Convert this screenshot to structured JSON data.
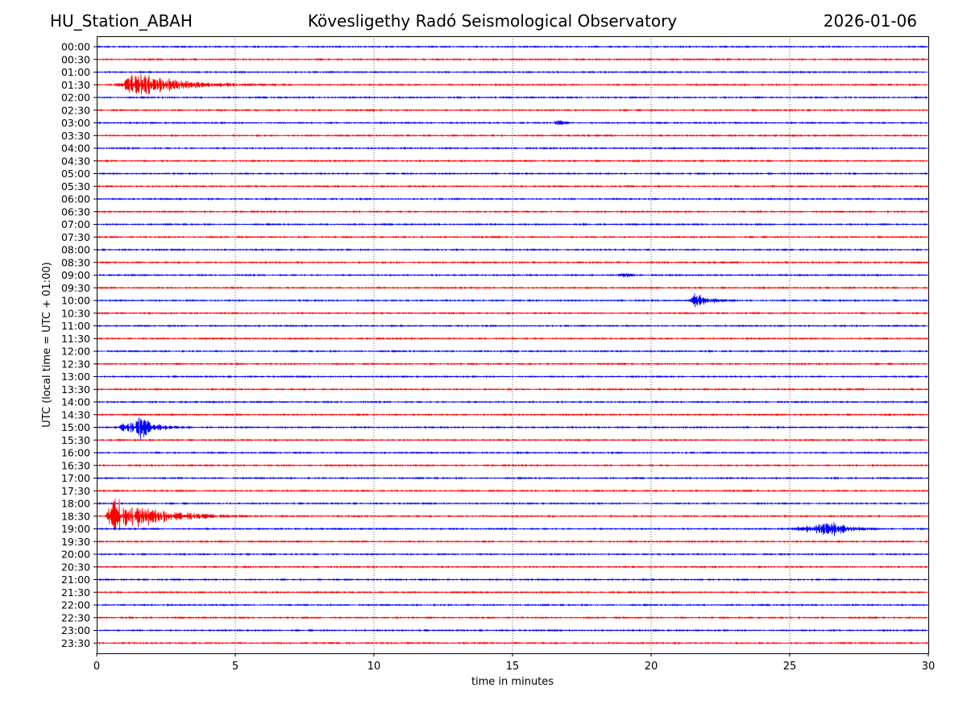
{
  "header": {
    "station": "HU_Station_ABAH",
    "observatory": "Kövesligethy Radó Seismological Observatory",
    "date": "2026-01-06"
  },
  "chart_data": {
    "type": "line",
    "title": "Kövesligethy Radó Seismological Observatory",
    "xlabel": "time in minutes",
    "ylabel": "UTC (local time = UTC + 01:00)",
    "xlim": [
      0,
      30
    ],
    "xticks": [
      0,
      5,
      10,
      15,
      20,
      25,
      30
    ],
    "grid": "vertical dotted at x ticks",
    "colors": {
      "even_rows": "#0000ff",
      "odd_rows": "#ff0000"
    },
    "rows": [
      "00:00",
      "00:30",
      "01:00",
      "01:30",
      "02:00",
      "02:30",
      "03:00",
      "03:30",
      "04:00",
      "04:30",
      "05:00",
      "05:30",
      "06:00",
      "06:30",
      "07:00",
      "07:30",
      "08:00",
      "08:30",
      "09:00",
      "09:30",
      "10:00",
      "10:30",
      "11:00",
      "11:30",
      "12:00",
      "12:30",
      "13:00",
      "13:30",
      "14:00",
      "14:30",
      "15:00",
      "15:30",
      "16:00",
      "16:30",
      "17:00",
      "17:30",
      "18:00",
      "18:30",
      "19:00",
      "19:30",
      "20:00",
      "20:30",
      "21:00",
      "21:30",
      "22:00",
      "22:30",
      "23:00",
      "23:30"
    ],
    "events": [
      {
        "row": "01:30",
        "start_min": 0.6,
        "peak_min": 1.4,
        "end_min": 7.5,
        "amplitude": "large"
      },
      {
        "row": "03:00",
        "start_min": 16.5,
        "peak_min": 16.6,
        "end_min": 17.2,
        "amplitude": "small"
      },
      {
        "row": "09:00",
        "start_min": 18.5,
        "peak_min": 19.2,
        "end_min": 19.8,
        "amplitude": "tiny"
      },
      {
        "row": "10:00",
        "start_min": 21.3,
        "peak_min": 21.6,
        "end_min": 23.5,
        "amplitude": "medium"
      },
      {
        "row": "15:00",
        "start_min": 0.6,
        "peak_min": 1.6,
        "end_min": 3.5,
        "amplitude": "large"
      },
      {
        "row": "18:30",
        "start_min": 0.3,
        "peak_min": 0.6,
        "end_min": 5.5,
        "amplitude": "very large"
      },
      {
        "row": "19:00",
        "start_min": 24.8,
        "peak_min": 26.6,
        "end_min": 28.8,
        "amplitude": "medium"
      }
    ]
  }
}
